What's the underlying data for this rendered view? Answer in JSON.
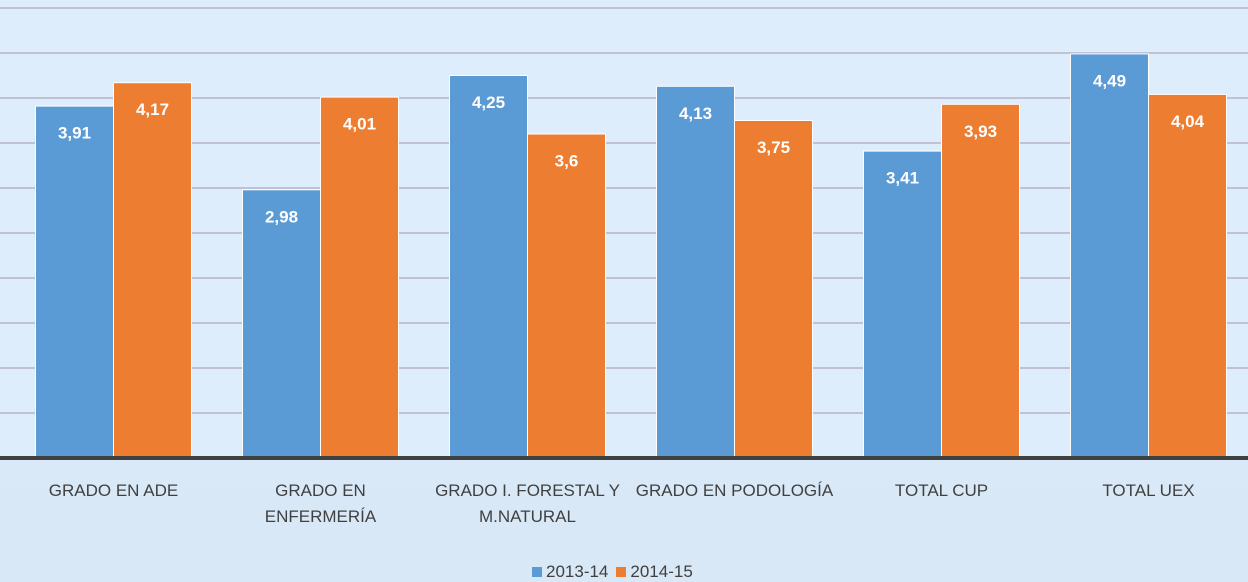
{
  "chart_data": {
    "type": "bar",
    "categories": [
      "GRADO EN ADE",
      "GRADO EN ENFERMERÍA",
      "GRADO I. FORESTAL Y M.NATURAL",
      "GRADO EN PODOLOGÍA",
      "TOTAL CUP",
      "TOTAL UEX"
    ],
    "series": [
      {
        "name": "2013-14",
        "color": "#5b9bd5",
        "values": [
          3.91,
          2.98,
          4.25,
          4.13,
          3.41,
          4.49
        ],
        "value_labels": [
          "3,91",
          "2,98",
          "4,25",
          "4,13",
          "3,41",
          "4,49"
        ]
      },
      {
        "name": "2014-15",
        "color": "#ed7d31",
        "values": [
          4.17,
          4.01,
          3.6,
          3.75,
          3.93,
          4.04
        ],
        "value_labels": [
          "4,17",
          "4,01",
          "3,6",
          "3,75",
          "3,93",
          "4,04"
        ]
      }
    ],
    "ylim": [
      0,
      5
    ],
    "yticks": [
      0,
      0.5,
      1,
      1.5,
      2,
      2.5,
      3,
      3.5,
      4,
      4.5,
      5
    ],
    "grid": true,
    "legend": "bottom"
  }
}
